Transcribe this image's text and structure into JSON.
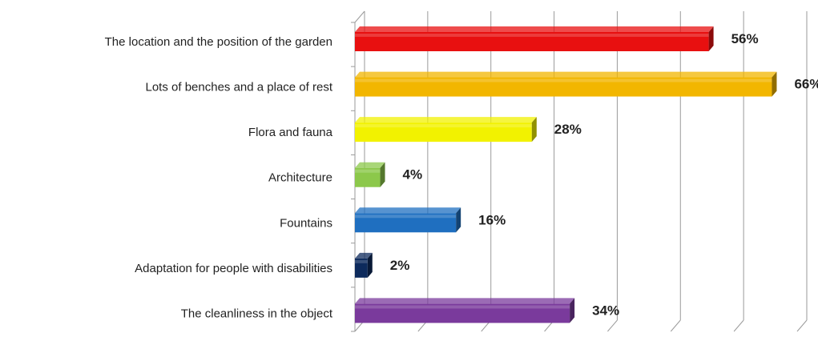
{
  "chart_data": {
    "type": "bar",
    "orientation": "horizontal",
    "style": "3d",
    "categories": [
      "The location and the position of the garden",
      "Lots of benches and a place of rest",
      "Flora and fauna",
      "Architecture",
      "Fountains",
      "Adaptation for people with disabilities",
      "The cleanliness in the object"
    ],
    "values": [
      56,
      66,
      28,
      4,
      16,
      2,
      34
    ],
    "value_labels": [
      "56%",
      "66%",
      "28%",
      "4%",
      "16%",
      "2%",
      "34%"
    ],
    "colors": [
      "#e81010",
      "#f2b600",
      "#f2f200",
      "#8cc84b",
      "#1f6fc0",
      "#0d2a5c",
      "#7a3a9c"
    ],
    "xlim": [
      0,
      70
    ],
    "grid": true,
    "legend": "none"
  }
}
